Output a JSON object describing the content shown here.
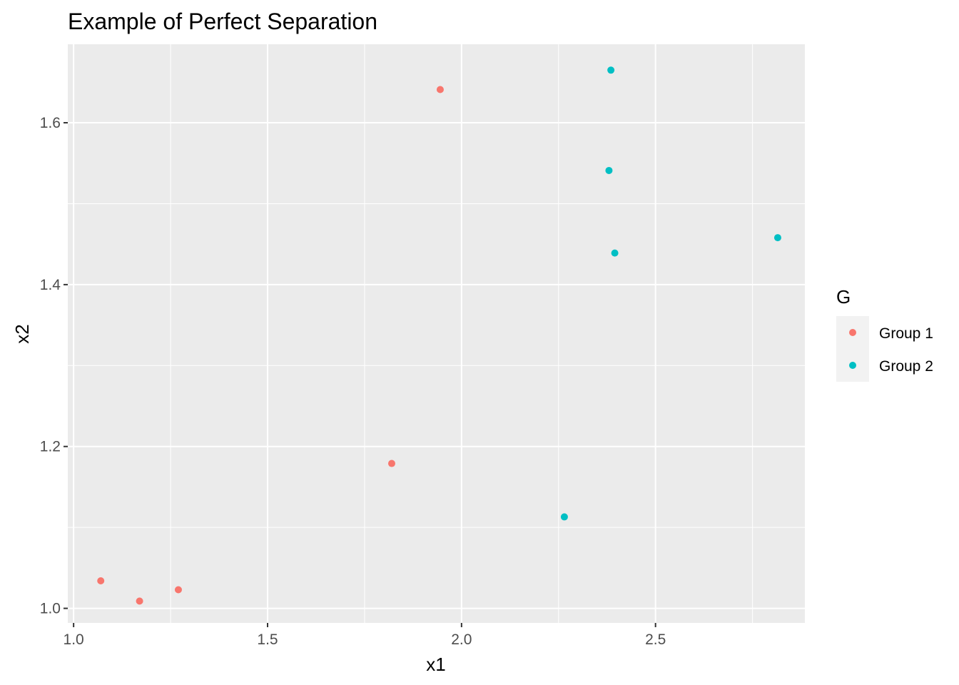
{
  "chart_data": {
    "type": "scatter",
    "title": "Example of Perfect Separation",
    "xlabel": "x1",
    "ylabel": "x2",
    "xlim": [
      0.985,
      2.885
    ],
    "ylim": [
      0.982,
      1.697
    ],
    "x_ticks": [
      1.0,
      1.5,
      2.0,
      2.5
    ],
    "x_tick_labels": [
      "1.0",
      "1.5",
      "2.0",
      "2.5"
    ],
    "y_ticks": [
      1.0,
      1.2,
      1.4,
      1.6
    ],
    "y_tick_labels": [
      "1.0",
      "1.2",
      "1.4",
      "1.6"
    ],
    "x_minor_ticks": [
      1.25,
      1.75,
      2.25,
      2.75
    ],
    "y_minor_ticks": [
      1.1,
      1.3,
      1.5
    ],
    "grid": true,
    "legend_title": "G",
    "legend_position": "right",
    "series": [
      {
        "name": "Group 1",
        "color": "#F8766D",
        "x": [
          1.07,
          1.17,
          1.27,
          1.82,
          1.945
        ],
        "y": [
          1.034,
          1.009,
          1.023,
          1.179,
          1.641
        ]
      },
      {
        "name": "Group 2",
        "color": "#00BFC4",
        "x": [
          2.265,
          2.38,
          2.385,
          2.395,
          2.815
        ],
        "y": [
          1.113,
          1.541,
          1.665,
          1.439,
          1.458
        ]
      }
    ],
    "panel_background": "#EBEBEB",
    "grid_color": "#FFFFFF"
  }
}
